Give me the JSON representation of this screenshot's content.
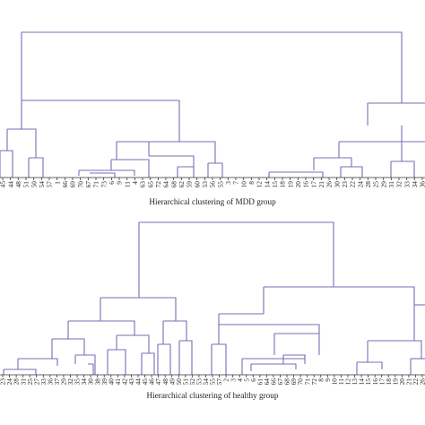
{
  "figure": {
    "panels": [
      {
        "id": "mdd",
        "caption": "Hierarchical clustering of MDD group",
        "leaf_labels": [
          "45",
          "44",
          "48",
          "51",
          "50",
          "54",
          "57",
          "1",
          "66",
          "69",
          "70",
          "67",
          "71",
          "73",
          "6",
          "9",
          "11",
          "4",
          "63",
          "65",
          "72",
          "64",
          "68",
          "62",
          "59",
          "60",
          "53",
          "56",
          "55",
          "3",
          "7",
          "10",
          "8",
          "12",
          "14",
          "15",
          "18",
          "19",
          "20",
          "16",
          "17",
          "21",
          "26",
          "30",
          "23",
          "22",
          "24",
          "28",
          "25",
          "29",
          "31",
          "32",
          "33",
          "34",
          "36"
        ]
      },
      {
        "id": "healthy",
        "caption": "Hierarchical clustering of healthy group",
        "leaf_labels": [
          "23",
          "24",
          "28",
          "31",
          "25",
          "27",
          "33",
          "36",
          "37",
          "29",
          "32",
          "35",
          "34",
          "30",
          "38",
          "39",
          "40",
          "41",
          "42",
          "43",
          "44",
          "45",
          "46",
          "47",
          "48",
          "49",
          "50",
          "51",
          "52",
          "53",
          "54",
          "55",
          "57",
          "2",
          "3",
          "4",
          "5",
          "6",
          "61",
          "64",
          "66",
          "67",
          "68",
          "69",
          "70",
          "71",
          "72",
          "8",
          "9",
          "10",
          "11",
          "12",
          "13",
          "14",
          "15",
          "16",
          "17",
          "18",
          "19",
          "20",
          "21",
          "22",
          "26"
        ]
      }
    ],
    "colors": {
      "link": "#7b6db6",
      "text": "#222222",
      "background": "#ffffff"
    }
  }
}
